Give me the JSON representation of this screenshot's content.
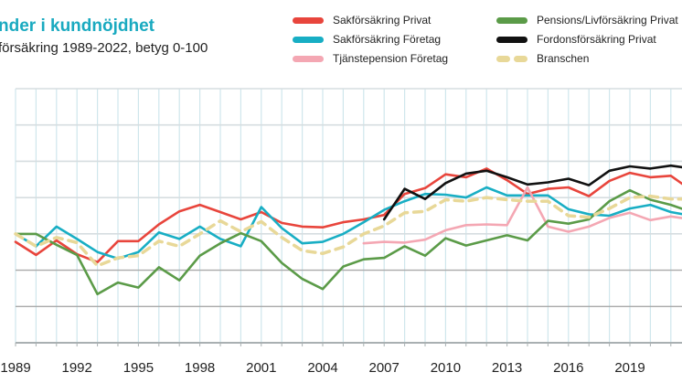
{
  "chart_data": {
    "type": "line",
    "title": "nder i kundnöjdhet",
    "subtitle": "försäkring 1989-2022, betyg 0-100",
    "xlabel": "",
    "ylabel": "",
    "x": [
      1989,
      1990,
      1991,
      1992,
      1993,
      1994,
      1995,
      1996,
      1997,
      1998,
      1999,
      2000,
      2001,
      2002,
      2003,
      2004,
      2005,
      2006,
      2007,
      2008,
      2009,
      2010,
      2011,
      2012,
      2013,
      2014,
      2015,
      2016,
      2017,
      2018,
      2019,
      2020,
      2021,
      2022
    ],
    "x_tick_labels": [
      "1989",
      "1992",
      "1995",
      "1998",
      "2001",
      "2004",
      "2007",
      "2010",
      "2013",
      "2016",
      "2019",
      "20"
    ],
    "x_ticks": [
      1989,
      1992,
      1995,
      1998,
      2001,
      2004,
      2007,
      2010,
      2013,
      2016,
      2019,
      2022
    ],
    "ylim": [
      55,
      90
    ],
    "y_gridlines": [
      55,
      60,
      65,
      70,
      75,
      80,
      85,
      90
    ],
    "grid": true,
    "legend_position": "top-right",
    "series": [
      {
        "name": "Sakförsäkring Privat",
        "color": "#e8453c",
        "dashed": false,
        "values": [
          68.9,
          67.1,
          69.1,
          67.2,
          66.1,
          69.0,
          69.0,
          71.3,
          73.1,
          74.0,
          73.0,
          72.0,
          73.0,
          71.5,
          71.0,
          70.9,
          71.6,
          72.0,
          72.6,
          75.5,
          76.3,
          78.2,
          77.8,
          79.0,
          77.4,
          75.5,
          76.2,
          76.4,
          75.2,
          77.3,
          78.4,
          77.8,
          78.0,
          76.0
        ]
      },
      {
        "name": "Sakförsäkring Företag",
        "color": "#18aec4",
        "dashed": false,
        "values": [
          70.0,
          68.3,
          71.0,
          69.3,
          67.5,
          66.6,
          67.5,
          70.2,
          69.3,
          71.0,
          69.3,
          68.3,
          73.7,
          70.8,
          68.7,
          68.9,
          70.0,
          71.6,
          73.3,
          74.5,
          75.5,
          75.4,
          75.0,
          76.4,
          75.3,
          75.3,
          75.3,
          73.4,
          72.7,
          72.5,
          73.5,
          74.0,
          73.0,
          72.5
        ]
      },
      {
        "name": "Tjänstepension Företag",
        "color": "#f4a7b3",
        "dashed": false,
        "values": [
          null,
          null,
          null,
          null,
          null,
          null,
          null,
          null,
          null,
          null,
          null,
          null,
          null,
          null,
          null,
          null,
          null,
          68.7,
          68.9,
          68.8,
          69.2,
          70.5,
          71.2,
          71.3,
          71.2,
          76.4,
          71.0,
          70.3,
          71.0,
          72.2,
          72.9,
          71.9,
          72.4,
          72.0
        ]
      },
      {
        "name": "Pensions/Livförsäkring Privat",
        "color": "#5b9b48",
        "dashed": false,
        "values": [
          70.0,
          70.0,
          68.5,
          67.1,
          61.7,
          63.3,
          62.6,
          65.4,
          63.6,
          67.0,
          68.7,
          70.1,
          69.0,
          66.0,
          63.8,
          62.4,
          65.5,
          66.5,
          66.7,
          68.3,
          67.0,
          69.4,
          68.4,
          69.1,
          69.8,
          69.1,
          71.8,
          71.4,
          72.0,
          74.5,
          76.0,
          74.7,
          74.0,
          73.0
        ]
      },
      {
        "name": "Fordonsförsäkring Privat",
        "color": "#111111",
        "dashed": false,
        "values": [
          null,
          null,
          null,
          null,
          null,
          null,
          null,
          null,
          null,
          null,
          null,
          null,
          null,
          null,
          null,
          null,
          null,
          null,
          72.0,
          76.2,
          74.8,
          77.0,
          78.3,
          78.7,
          77.8,
          76.8,
          77.1,
          77.6,
          76.7,
          78.7,
          79.3,
          79.0,
          79.4,
          79.0
        ]
      },
      {
        "name": "Branschen",
        "color": "#e8d898",
        "dashed": true,
        "values": [
          70.0,
          68.3,
          69.5,
          68.8,
          65.6,
          66.7,
          67.0,
          69.0,
          68.3,
          70.0,
          71.8,
          70.3,
          71.7,
          69.5,
          67.7,
          67.3,
          68.2,
          70.0,
          71.1,
          72.9,
          73.1,
          74.7,
          74.5,
          75.0,
          74.7,
          74.5,
          74.5,
          72.5,
          72.3,
          73.5,
          75.0,
          75.2,
          74.8,
          74.8
        ]
      }
    ]
  }
}
